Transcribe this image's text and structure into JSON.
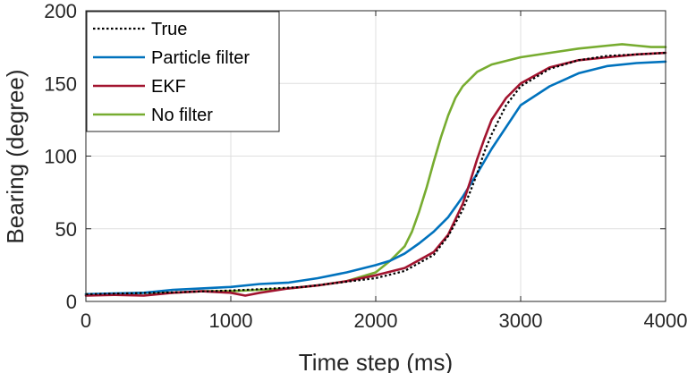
{
  "chart_data": {
    "type": "line",
    "title": "",
    "xlabel": "Time step (ms)",
    "ylabel": "Bearing (degree)",
    "xlim": [
      0,
      4000
    ],
    "ylim": [
      0,
      200
    ],
    "xticks": [
      0,
      1000,
      2000,
      3000,
      4000
    ],
    "yticks": [
      0,
      50,
      100,
      150,
      200
    ],
    "xtick_labels": [
      "0",
      "1000",
      "2000",
      "3000",
      "4000"
    ],
    "ytick_labels": [
      "0",
      "50",
      "100",
      "150",
      "200"
    ],
    "grid": true,
    "legend_position": "top-left",
    "series": [
      {
        "name": "True",
        "color": "#000000",
        "dash": "dotted",
        "x": [
          0,
          500,
          1000,
          1500,
          2000,
          2200,
          2400,
          2500,
          2600,
          2650,
          2700,
          2750,
          2800,
          2900,
          3000,
          3200,
          3400,
          3600,
          3800,
          4000
        ],
        "y": [
          5,
          6,
          7.5,
          10,
          16,
          21,
          32,
          45,
          63,
          75,
          88,
          103,
          115,
          135,
          148,
          160,
          166,
          169,
          170,
          171
        ]
      },
      {
        "name": "Particle filter",
        "color": "#0072BD",
        "dash": "solid",
        "x": [
          0,
          200,
          400,
          600,
          800,
          1000,
          1200,
          1400,
          1600,
          1800,
          2000,
          2100,
          2200,
          2300,
          2400,
          2500,
          2600,
          2700,
          2800,
          2900,
          3000,
          3200,
          3400,
          3600,
          3800,
          4000
        ],
        "y": [
          5,
          5.5,
          6,
          8,
          9,
          10,
          12,
          13,
          16,
          20,
          25,
          28,
          33,
          40,
          48,
          58,
          72,
          88,
          105,
          120,
          135,
          148,
          157,
          162,
          164,
          165
        ]
      },
      {
        "name": "EKF",
        "color": "#A2142F",
        "dash": "solid",
        "x": [
          0,
          200,
          400,
          600,
          800,
          1000,
          1100,
          1200,
          1400,
          1600,
          1800,
          2000,
          2200,
          2400,
          2500,
          2600,
          2650,
          2700,
          2750,
          2800,
          2900,
          3000,
          3200,
          3400,
          3600,
          3800,
          4000
        ],
        "y": [
          4,
          4.5,
          4,
          6,
          7,
          6,
          4,
          6,
          9,
          11,
          14,
          18,
          23,
          34,
          46,
          67,
          82,
          98,
          112,
          125,
          140,
          150,
          161,
          166,
          168,
          170,
          171
        ]
      },
      {
        "name": "No filter",
        "color": "#77AC30",
        "dash": "solid",
        "x": [
          0,
          200,
          400,
          600,
          800,
          1000,
          1200,
          1400,
          1600,
          1800,
          2000,
          2100,
          2200,
          2250,
          2300,
          2350,
          2400,
          2450,
          2500,
          2550,
          2600,
          2700,
          2800,
          3000,
          3200,
          3400,
          3600,
          3700,
          3800,
          3900,
          4000
        ],
        "y": [
          5,
          5,
          6,
          6,
          7,
          7,
          8,
          9,
          11,
          14,
          20,
          28,
          38,
          48,
          62,
          78,
          96,
          113,
          128,
          140,
          148,
          158,
          163,
          168,
          171,
          174,
          176,
          177,
          176,
          175,
          175
        ]
      }
    ]
  }
}
